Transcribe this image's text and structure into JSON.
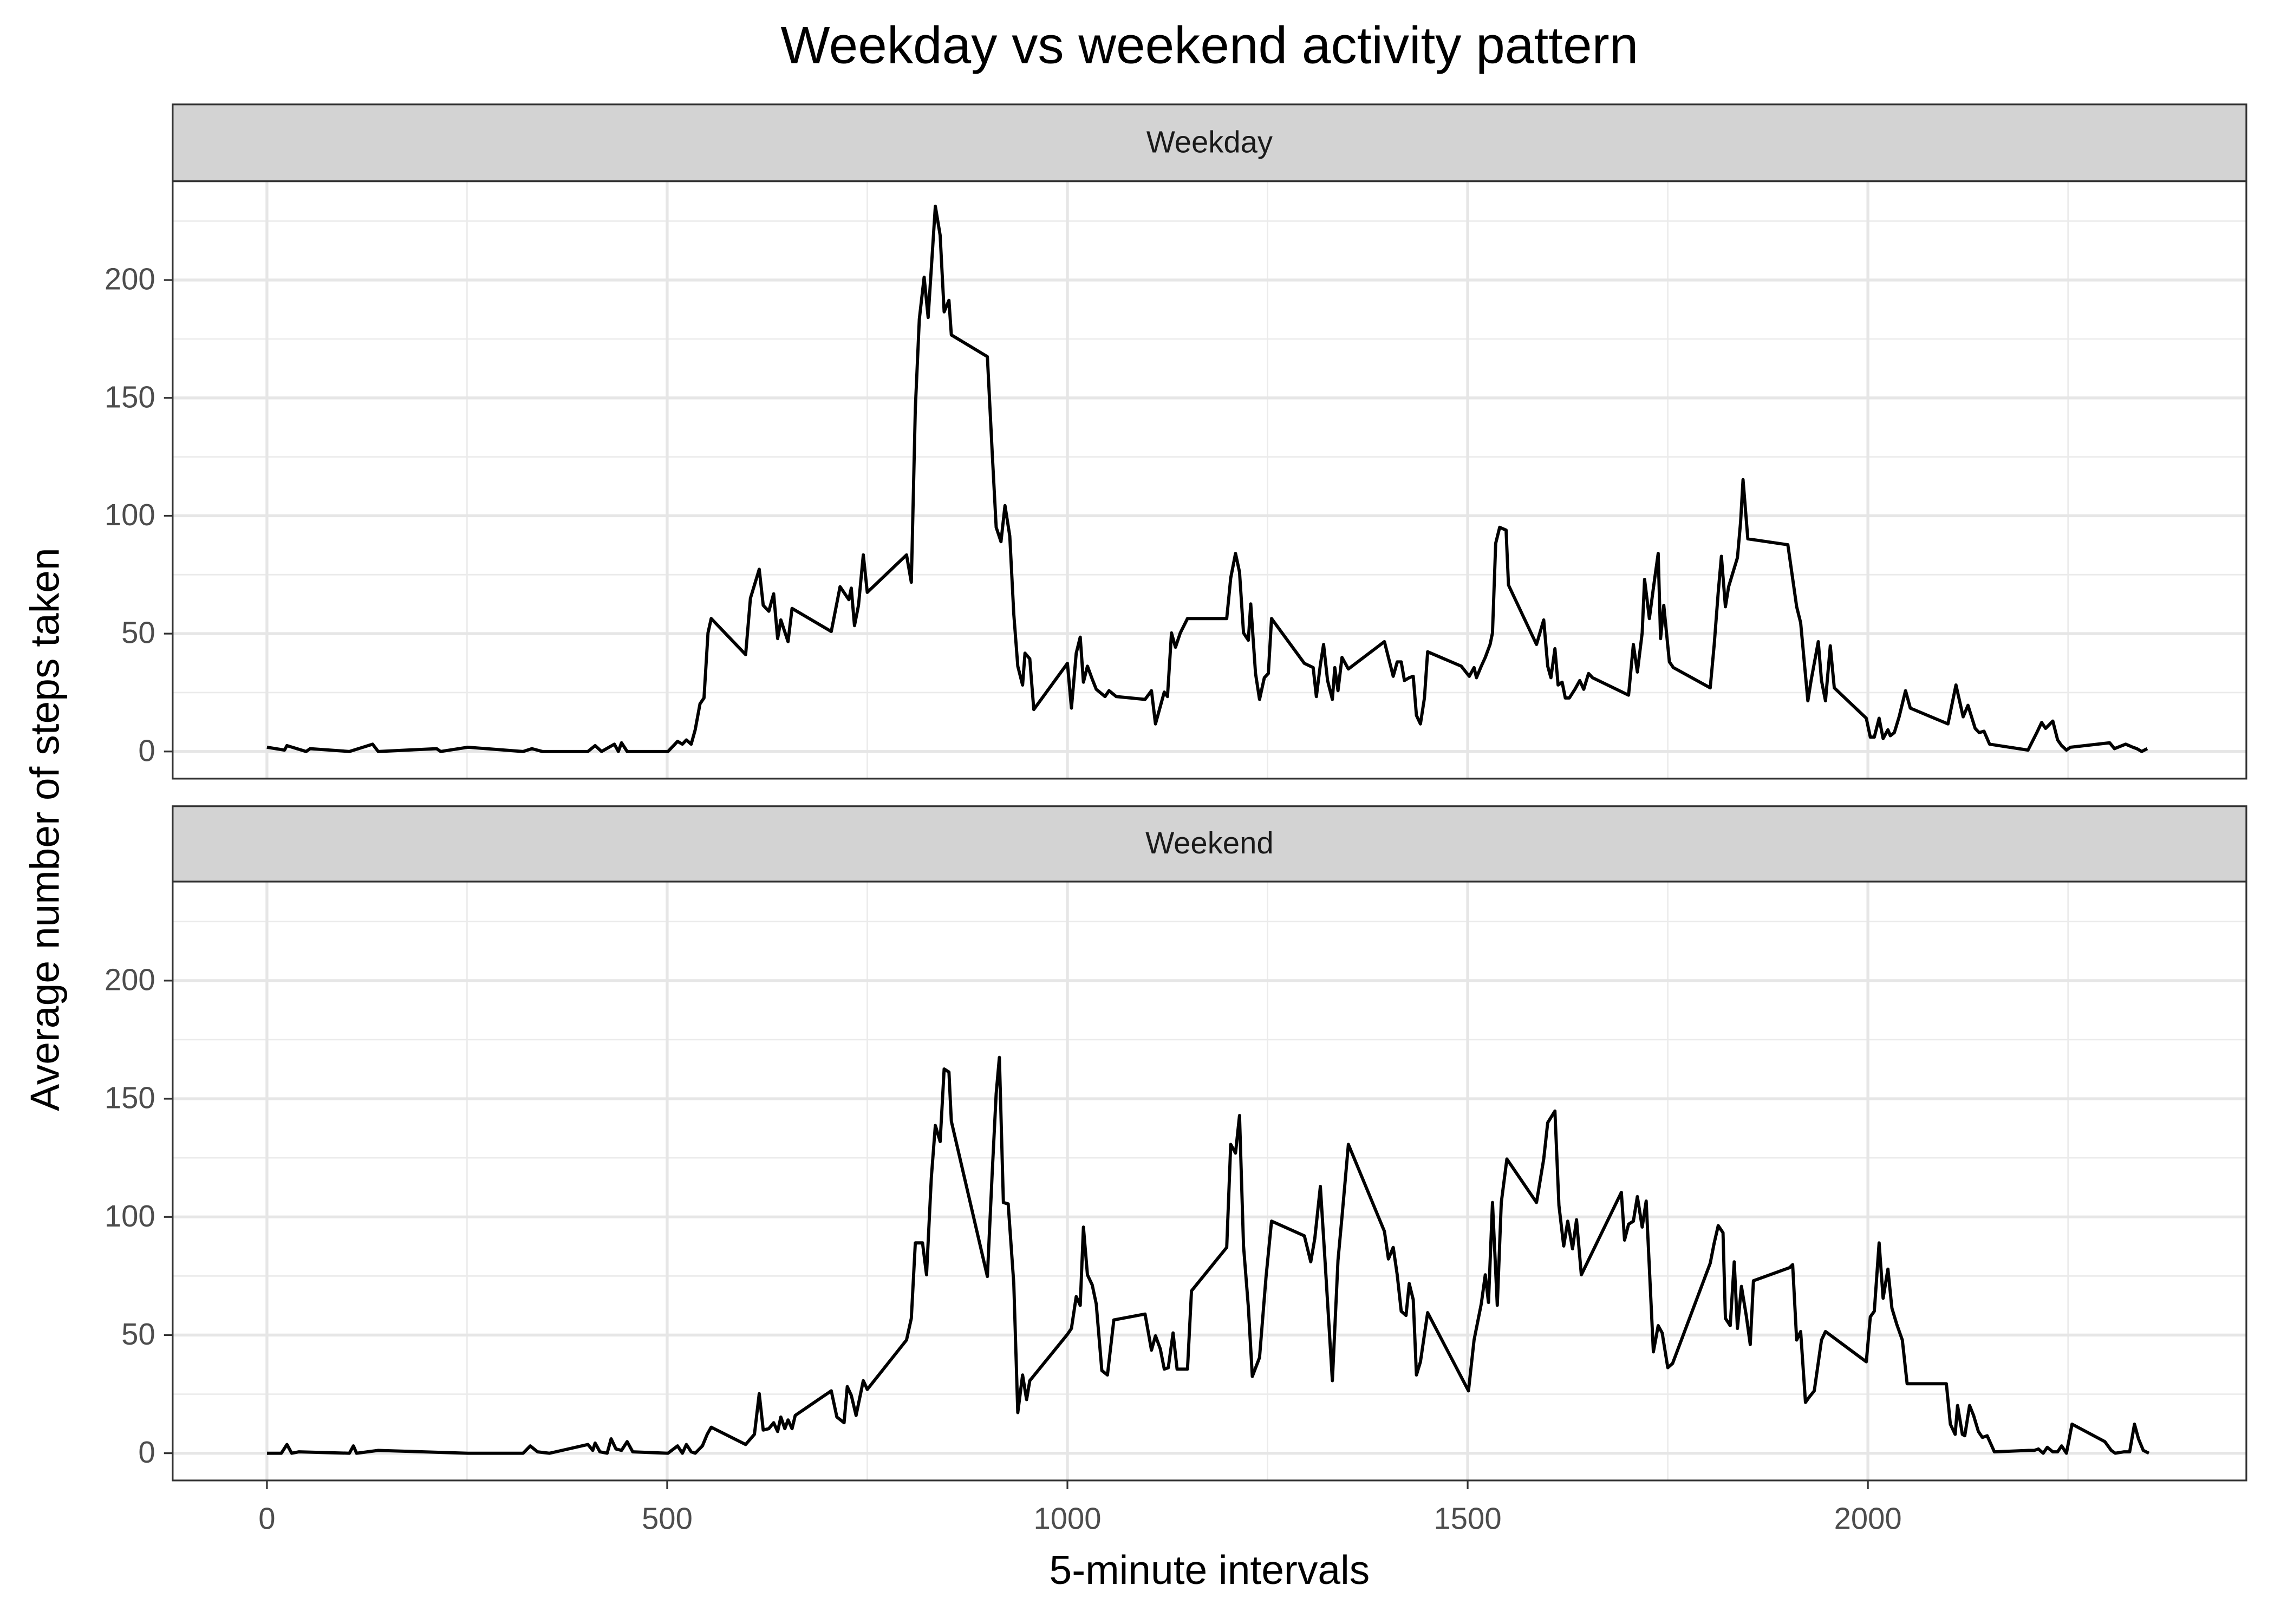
{
  "title": "Weekday vs weekend activity pattern",
  "x_label": "5-minute intervals",
  "y_label": "Average number of steps taken",
  "chart_data": [
    {
      "type": "line",
      "facet": "Weekday",
      "color": "#000000",
      "grid": true,
      "xlim": [
        -117.75,
        2472.75
      ],
      "ylim": [
        -11.52,
        241.9
      ],
      "xticks": [
        0,
        500,
        1000,
        1500,
        2000
      ],
      "yticks": [
        0,
        50,
        100,
        150,
        200
      ],
      "x": [
        0,
        22,
        25,
        49,
        54,
        103,
        132,
        139,
        212,
        217,
        251,
        320,
        331,
        344,
        401,
        410,
        418,
        434,
        439,
        443,
        450,
        465,
        501,
        513,
        519,
        524,
        530,
        535,
        541,
        546,
        551,
        555,
        598,
        604,
        615,
        620,
        627,
        633,
        638,
        642,
        651,
        656,
        705,
        716,
        727,
        730,
        734,
        739,
        745,
        750,
        799,
        805,
        810,
        815,
        821,
        826,
        835,
        841,
        846,
        852,
        855,
        900,
        906,
        911,
        917,
        922,
        928,
        933,
        938,
        944,
        947,
        953,
        958,
        1000,
        1005,
        1011,
        1016,
        1020,
        1025,
        1031,
        1036,
        1047,
        1052,
        1061,
        1097,
        1105,
        1110,
        1121,
        1125,
        1130,
        1135,
        1141,
        1150,
        1199,
        1204,
        1210,
        1215,
        1220,
        1226,
        1229,
        1235,
        1240,
        1246,
        1251,
        1255,
        1296,
        1307,
        1311,
        1316,
        1320,
        1325,
        1331,
        1334,
        1338,
        1343,
        1351,
        1396,
        1401,
        1407,
        1412,
        1417,
        1421,
        1427,
        1432,
        1436,
        1441,
        1446,
        1450,
        1492,
        1502,
        1508,
        1511,
        1517,
        1522,
        1528,
        1531,
        1535,
        1540,
        1548,
        1551,
        1586,
        1595,
        1600,
        1604,
        1609,
        1613,
        1618,
        1622,
        1627,
        1634,
        1640,
        1645,
        1651,
        1656,
        1701,
        1707,
        1712,
        1718,
        1721,
        1727,
        1732,
        1738,
        1741,
        1745,
        1752,
        1757,
        1803,
        1808,
        1813,
        1817,
        1822,
        1826,
        1831,
        1837,
        1841,
        1844,
        1850,
        1900,
        1911,
        1916,
        1925,
        1929,
        1938,
        1942,
        1947,
        1953,
        1958,
        1998,
        2003,
        2008,
        2014,
        2019,
        2025,
        2028,
        2033,
        2039,
        2047,
        2053,
        2100,
        2110,
        2119,
        2125,
        2134,
        2139,
        2145,
        2152,
        2200,
        2211,
        2217,
        2222,
        2231,
        2237,
        2242,
        2248,
        2253,
        2302,
        2308,
        2322,
        2331,
        2336,
        2342,
        2349
      ],
      "values": [
        1.8,
        0.6,
        2.5,
        0,
        1.2,
        0,
        3.1,
        0,
        1.2,
        0,
        1.8,
        0,
        1.2,
        0,
        0,
        2.5,
        0,
        3.1,
        0,
        3.7,
        0,
        0,
        0,
        4.3,
        3.1,
        4.9,
        3.1,
        9.2,
        20.2,
        22.7,
        50.3,
        56.4,
        41.1,
        65.0,
        77.3,
        62.0,
        59.5,
        66.9,
        47.9,
        55.8,
        46.6,
        60.7,
        50.9,
        69.9,
        64.4,
        69.3,
        53.4,
        62.0,
        83.4,
        67.5,
        83.4,
        71.8,
        145.4,
        183.4,
        201.2,
        184.1,
        231.3,
        219.0,
        186.5,
        191.4,
        176.7,
        167.5,
        127.0,
        95.1,
        89.0,
        104.3,
        91.4,
        58.3,
        36.2,
        28.2,
        41.7,
        39.3,
        17.8,
        37.4,
        18.4,
        41.7,
        48.5,
        29.4,
        36.2,
        30.7,
        26.4,
        23.3,
        25.8,
        23.3,
        22.1,
        25.8,
        11.7,
        25.2,
        23.3,
        50.3,
        44.2,
        50.3,
        56.4,
        56.4,
        73.6,
        84.0,
        76.1,
        50.3,
        47.2,
        62.6,
        33.1,
        22.1,
        31.3,
        33.1,
        56.4,
        37.4,
        35.6,
        23.3,
        36.8,
        45.4,
        30.1,
        22.1,
        35.6,
        25.8,
        39.9,
        35.0,
        46.6,
        39.9,
        31.9,
        38.0,
        38.0,
        30.1,
        31.3,
        31.9,
        15.3,
        11.7,
        22.7,
        42.3,
        36.2,
        31.9,
        35.6,
        31.3,
        36.2,
        39.9,
        45.4,
        50.3,
        88.3,
        95.1,
        93.9,
        70.6,
        45.4,
        55.8,
        36.2,
        31.3,
        43.6,
        28.2,
        29.4,
        22.7,
        22.7,
        26.4,
        30.1,
        26.4,
        33.1,
        31.3,
        23.9,
        45.4,
        33.7,
        50.3,
        73.0,
        56.4,
        69.3,
        84.0,
        47.9,
        62.0,
        38.0,
        35.6,
        27.0,
        45.4,
        67.5,
        82.8,
        61.4,
        69.9,
        75.5,
        82.2,
        97.5,
        115.3,
        90.2,
        87.7,
        61.4,
        54.6,
        21.5,
        30.1,
        46.6,
        30.1,
        21.5,
        44.8,
        27.0,
        14.1,
        6.1,
        6.1,
        14.1,
        5.5,
        9.2,
        6.7,
        8.0,
        14.7,
        25.8,
        18.4,
        11.7,
        28.2,
        14.7,
        19.6,
        9.8,
        8.0,
        8.6,
        3.1,
        0.6,
        8.0,
        12.3,
        9.8,
        12.9,
        4.9,
        2.5,
        0.6,
        1.8,
        3.7,
        1.2,
        3.1,
        1.8,
        1.2,
        0,
        1.2
      ]
    },
    {
      "type": "line",
      "facet": "Weekend",
      "color": "#000000",
      "grid": true,
      "xlim": [
        -117.75,
        2472.75
      ],
      "ylim": [
        -11.52,
        241.9
      ],
      "xticks": [
        0,
        500,
        1000,
        1500,
        2000
      ],
      "yticks": [
        0,
        50,
        100,
        150,
        200
      ],
      "x": [
        0,
        18,
        25,
        31,
        40,
        103,
        108,
        112,
        139,
        251,
        320,
        329,
        338,
        353,
        401,
        407,
        410,
        416,
        425,
        430,
        436,
        443,
        450,
        457,
        501,
        513,
        519,
        524,
        530,
        535,
        544,
        550,
        555,
        598,
        609,
        615,
        620,
        627,
        633,
        638,
        642,
        647,
        651,
        656,
        660,
        705,
        712,
        721,
        725,
        730,
        736,
        739,
        745,
        750,
        799,
        805,
        810,
        819,
        824,
        830,
        835,
        841,
        846,
        852,
        855,
        900,
        906,
        911,
        915,
        920,
        926,
        933,
        938,
        944,
        949,
        953,
        1000,
        1005,
        1011,
        1016,
        1020,
        1025,
        1031,
        1036,
        1043,
        1050,
        1058,
        1097,
        1105,
        1110,
        1116,
        1121,
        1126,
        1132,
        1137,
        1150,
        1155,
        1199,
        1204,
        1210,
        1215,
        1220,
        1226,
        1231,
        1240,
        1248,
        1255,
        1296,
        1304,
        1309,
        1316,
        1322,
        1331,
        1338,
        1343,
        1351,
        1396,
        1401,
        1407,
        1412,
        1417,
        1423,
        1427,
        1432,
        1436,
        1441,
        1450,
        1501,
        1508,
        1517,
        1522,
        1526,
        1531,
        1537,
        1542,
        1549,
        1586,
        1595,
        1600,
        1609,
        1614,
        1620,
        1625,
        1631,
        1636,
        1642,
        1692,
        1696,
        1701,
        1707,
        1712,
        1718,
        1723,
        1732,
        1738,
        1743,
        1750,
        1756,
        1803,
        1808,
        1813,
        1819,
        1822,
        1828,
        1833,
        1837,
        1842,
        1848,
        1853,
        1857,
        1902,
        1906,
        1911,
        1916,
        1922,
        1927,
        1933,
        1942,
        1947,
        1998,
        2003,
        2008,
        2014,
        2019,
        2025,
        2030,
        2036,
        2043,
        2049,
        2098,
        2103,
        2109,
        2112,
        2118,
        2121,
        2127,
        2132,
        2138,
        2143,
        2149,
        2158,
        2201,
        2208,
        2213,
        2219,
        2224,
        2231,
        2237,
        2242,
        2248,
        2255,
        2296,
        2304,
        2309,
        2320,
        2327,
        2333,
        2338,
        2344,
        2351
      ],
      "values": [
        0,
        0,
        3.7,
        0,
        0.6,
        0,
        3.1,
        0,
        1.2,
        0,
        0,
        3.1,
        0.6,
        0,
        3.7,
        1.2,
        4.3,
        0.6,
        0,
        6.1,
        1.8,
        1.2,
        4.9,
        0.6,
        0,
        3.1,
        0,
        3.7,
        0.6,
        0,
        3.1,
        8.0,
        11.0,
        3.7,
        8.0,
        25.2,
        9.8,
        10.4,
        12.9,
        9.2,
        15.3,
        10.4,
        14.1,
        10.4,
        16.0,
        26.4,
        15.3,
        12.9,
        28.2,
        24.5,
        16.0,
        20.9,
        30.7,
        27.0,
        47.9,
        57.1,
        89.0,
        89.0,
        75.5,
        116.6,
        138.7,
        131.9,
        162.6,
        161.3,
        140.5,
        74.8,
        118.4,
        152.2,
        167.5,
        106.1,
        105.5,
        71.8,
        17.2,
        33.1,
        22.7,
        30.7,
        50.3,
        52.8,
        66.3,
        62.6,
        95.7,
        75.5,
        71.2,
        63.2,
        35.0,
        33.1,
        56.4,
        58.9,
        43.6,
        49.7,
        44.2,
        35.6,
        36.2,
        50.9,
        35.6,
        35.6,
        68.7,
        87.1,
        130.7,
        127.0,
        142.9,
        87.7,
        62.0,
        32.5,
        40.5,
        74.2,
        98.2,
        92.0,
        81.0,
        90.8,
        112.9,
        80.4,
        30.7,
        81.6,
        100.0,
        130.7,
        93.9,
        82.2,
        87.1,
        75.5,
        60.1,
        58.3,
        71.8,
        65.0,
        33.1,
        38.7,
        59.5,
        26.4,
        47.9,
        63.2,
        75.5,
        63.8,
        106.1,
        62.6,
        106.1,
        124.5,
        106.1,
        124.5,
        139.9,
        144.8,
        104.9,
        87.7,
        98.2,
        86.5,
        98.8,
        75.5,
        110.4,
        90.2,
        96.9,
        98.2,
        108.6,
        95.7,
        106.7,
        42.9,
        54.0,
        50.9,
        36.2,
        38.0,
        80.4,
        89.0,
        96.3,
        93.3,
        57.1,
        54.0,
        81.0,
        52.8,
        70.6,
        58.3,
        46.0,
        73.0,
        78.5,
        79.8,
        47.9,
        51.5,
        21.5,
        23.9,
        26.4,
        47.9,
        51.5,
        38.7,
        57.7,
        60.1,
        89.0,
        65.6,
        77.9,
        61.4,
        54.6,
        47.9,
        29.4,
        29.4,
        12.3,
        8.0,
        20.2,
        8.0,
        7.4,
        20.2,
        16.0,
        9.2,
        6.7,
        7.4,
        0.6,
        1.2,
        1.2,
        1.8,
        0,
        2.5,
        0.6,
        0.6,
        3.1,
        0,
        12.3,
        4.9,
        1.2,
        0,
        0.6,
        0.6,
        12.3,
        6.1,
        1.2,
        0
      ]
    }
  ]
}
